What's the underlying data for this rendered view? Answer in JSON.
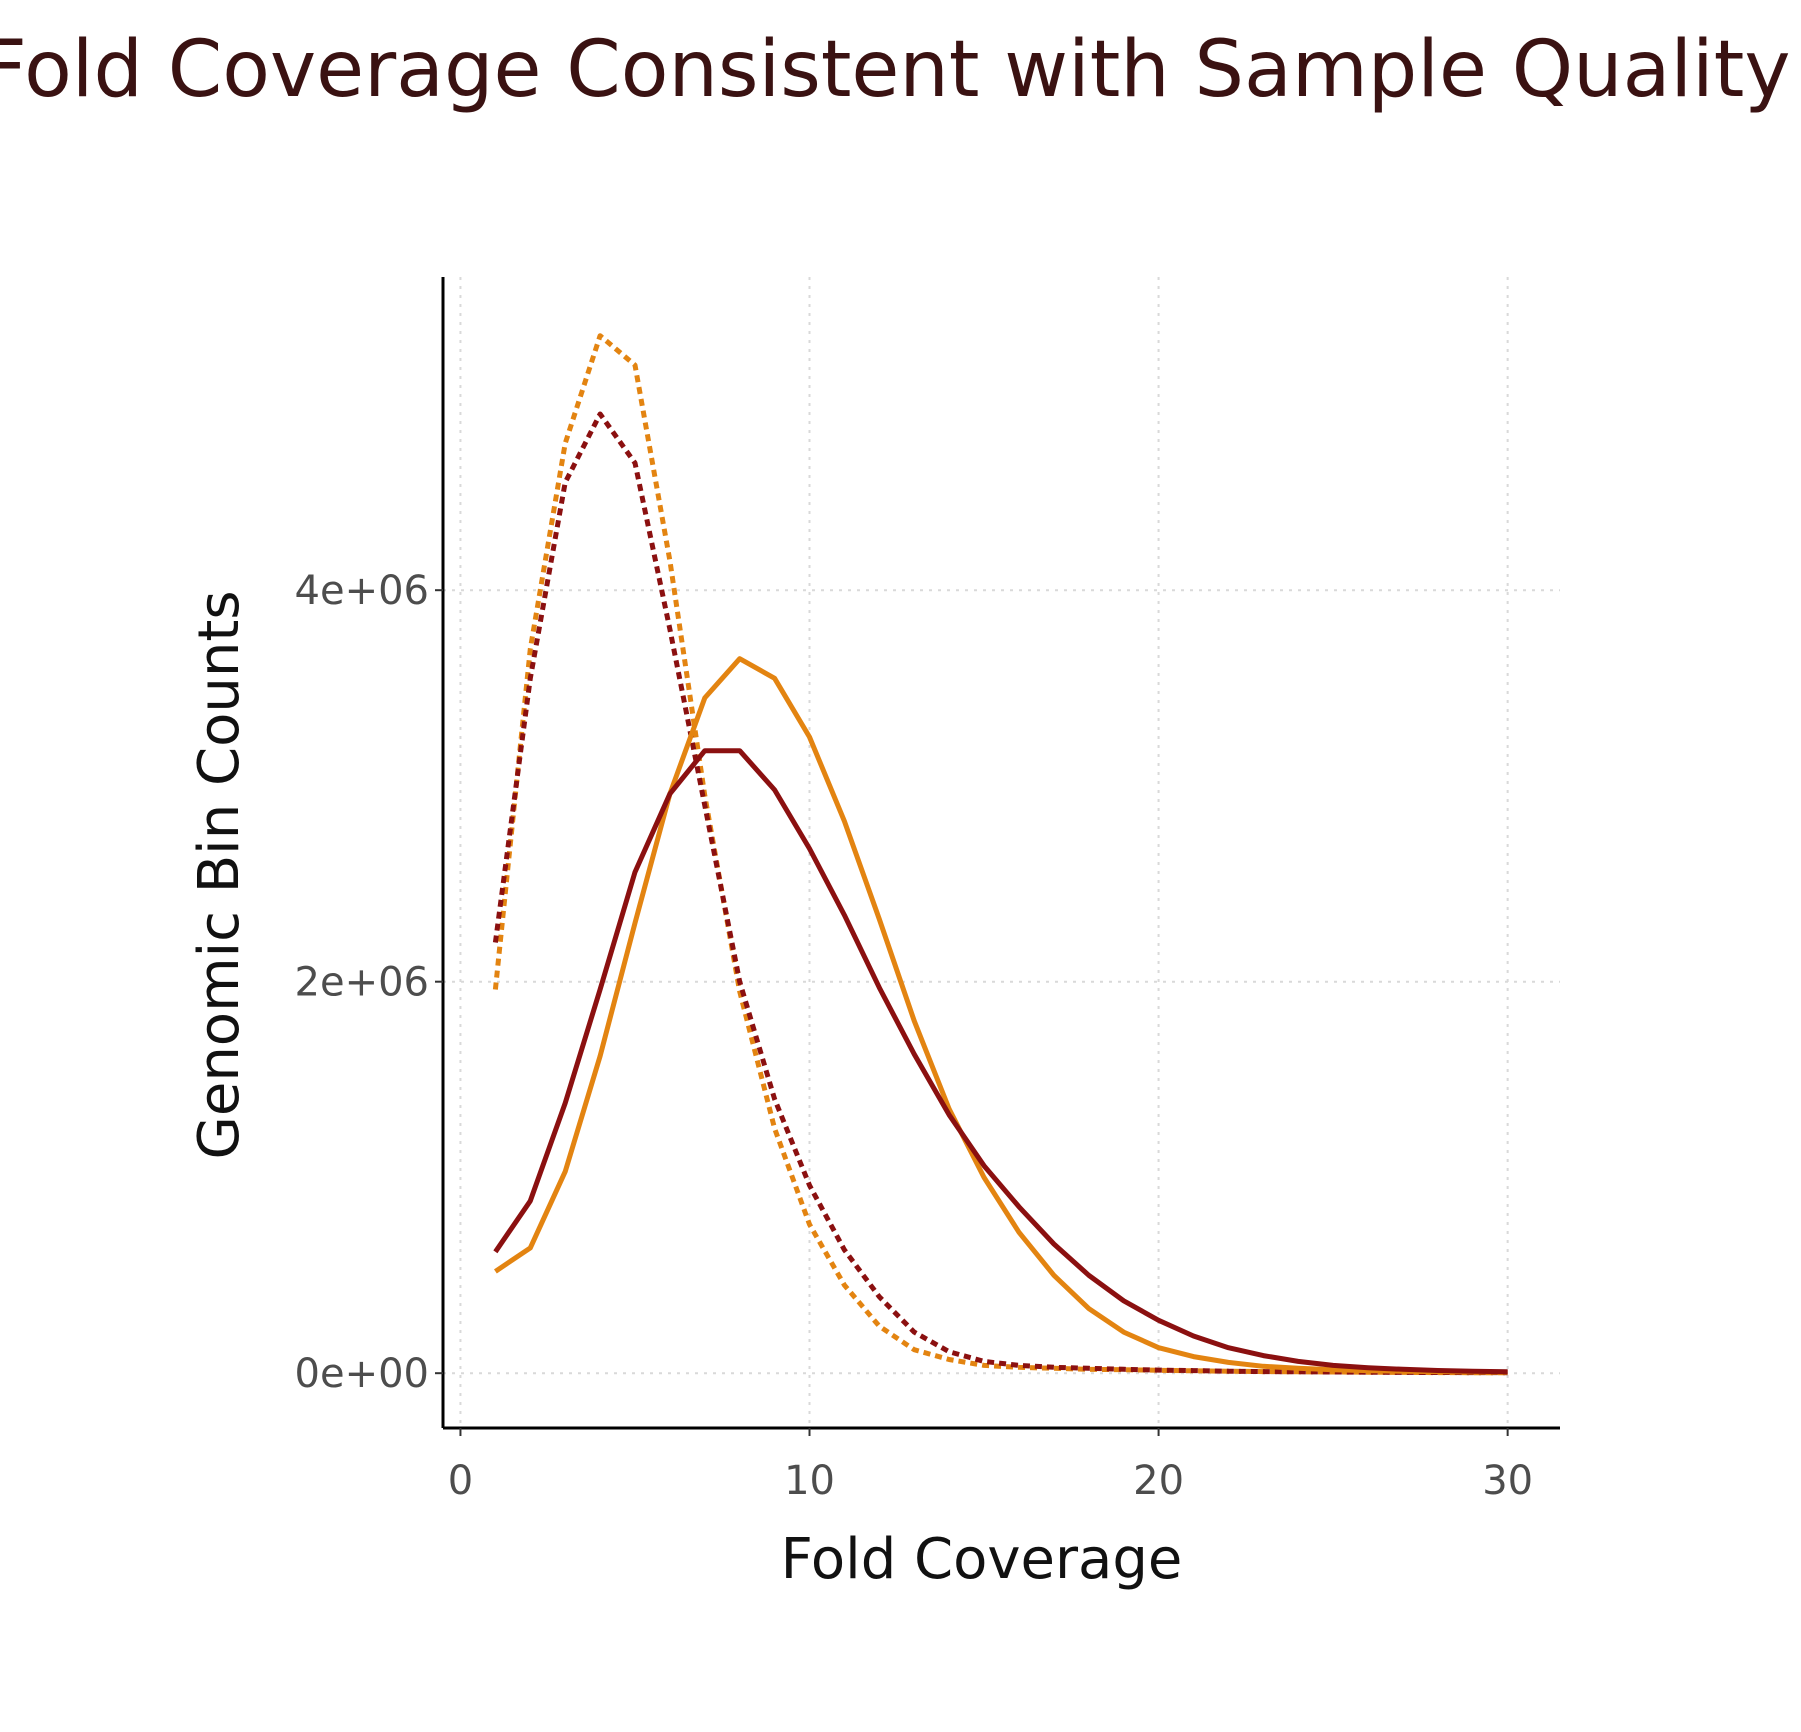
{
  "page": {
    "title": "Fold Coverage Consistent with Sample Quality"
  },
  "colors": {
    "dark_red": "#8b1010",
    "orange": "#e38411",
    "title": "#3a1212"
  },
  "chart_data": {
    "type": "line",
    "title": "",
    "xlabel": "Fold Coverage",
    "ylabel": "Genomic Bin Counts",
    "xlim": [
      -0.5,
      31.5
    ],
    "ylim": [
      -280000,
      5600000
    ],
    "x_ticks": [
      0,
      10,
      20,
      30
    ],
    "x_tick_labels": [
      "0",
      "10",
      "20",
      "30"
    ],
    "y_ticks": [
      0,
      2000000,
      4000000
    ],
    "y_tick_labels": [
      "0e+00",
      "2e+06",
      "4e+06"
    ],
    "grid": true,
    "legend": "none",
    "series": [
      {
        "color": "#e38411",
        "style": "dotted",
        "x": [
          1,
          2,
          3,
          4,
          5,
          6,
          7,
          8,
          9,
          10,
          11,
          12,
          13,
          14,
          15,
          16,
          17,
          18,
          19,
          20,
          21,
          22,
          23,
          24,
          25,
          26,
          27,
          28,
          29,
          30
        ],
        "values": [
          1960000,
          3700000,
          4750000,
          5300000,
          5150000,
          4150000,
          2950000,
          1950000,
          1250000,
          760000,
          450000,
          240000,
          120000,
          70000,
          40000,
          30000,
          25000,
          20000,
          18000,
          15000,
          12000,
          10000,
          8000,
          7000,
          6000,
          5000,
          4000,
          3000,
          2500,
          2000
        ]
      },
      {
        "color": "#8b1010",
        "style": "dotted",
        "x": [
          1,
          2,
          3,
          4,
          5,
          6,
          7,
          8,
          9,
          10,
          11,
          12,
          13,
          14,
          15,
          16,
          17,
          18,
          19,
          20,
          21,
          22,
          23,
          24,
          25,
          26,
          27,
          28,
          29,
          30
        ],
        "values": [
          2200000,
          3550000,
          4550000,
          4900000,
          4650000,
          3800000,
          2900000,
          2000000,
          1400000,
          960000,
          630000,
          390000,
          210000,
          110000,
          60000,
          40000,
          30000,
          25000,
          20000,
          16000,
          13000,
          10000,
          8000,
          7000,
          6000,
          5000,
          4000,
          3500,
          3000,
          2500
        ]
      },
      {
        "color": "#e38411",
        "style": "solid",
        "x": [
          1,
          2,
          3,
          4,
          5,
          6,
          7,
          8,
          9,
          10,
          11,
          12,
          13,
          14,
          15,
          16,
          17,
          18,
          19,
          20,
          21,
          22,
          23,
          24,
          25,
          26,
          27,
          28,
          29,
          30
        ],
        "values": [
          520000,
          640000,
          1030000,
          1620000,
          2300000,
          2960000,
          3450000,
          3650000,
          3550000,
          3250000,
          2820000,
          2320000,
          1800000,
          1350000,
          1000000,
          720000,
          500000,
          330000,
          210000,
          130000,
          85000,
          55000,
          35000,
          25000,
          18000,
          13000,
          10000,
          8000,
          6000,
          5000
        ]
      },
      {
        "color": "#8b1010",
        "style": "solid",
        "x": [
          1,
          2,
          3,
          4,
          5,
          6,
          7,
          8,
          9,
          10,
          11,
          12,
          13,
          14,
          15,
          16,
          17,
          18,
          19,
          20,
          21,
          22,
          23,
          24,
          25,
          26,
          27,
          28,
          29,
          30
        ],
        "values": [
          620000,
          880000,
          1380000,
          1960000,
          2560000,
          2960000,
          3180000,
          3180000,
          2980000,
          2680000,
          2340000,
          1970000,
          1630000,
          1320000,
          1060000,
          850000,
          660000,
          500000,
          370000,
          270000,
          190000,
          130000,
          90000,
          60000,
          40000,
          28000,
          20000,
          14000,
          10000,
          7000
        ]
      }
    ]
  }
}
